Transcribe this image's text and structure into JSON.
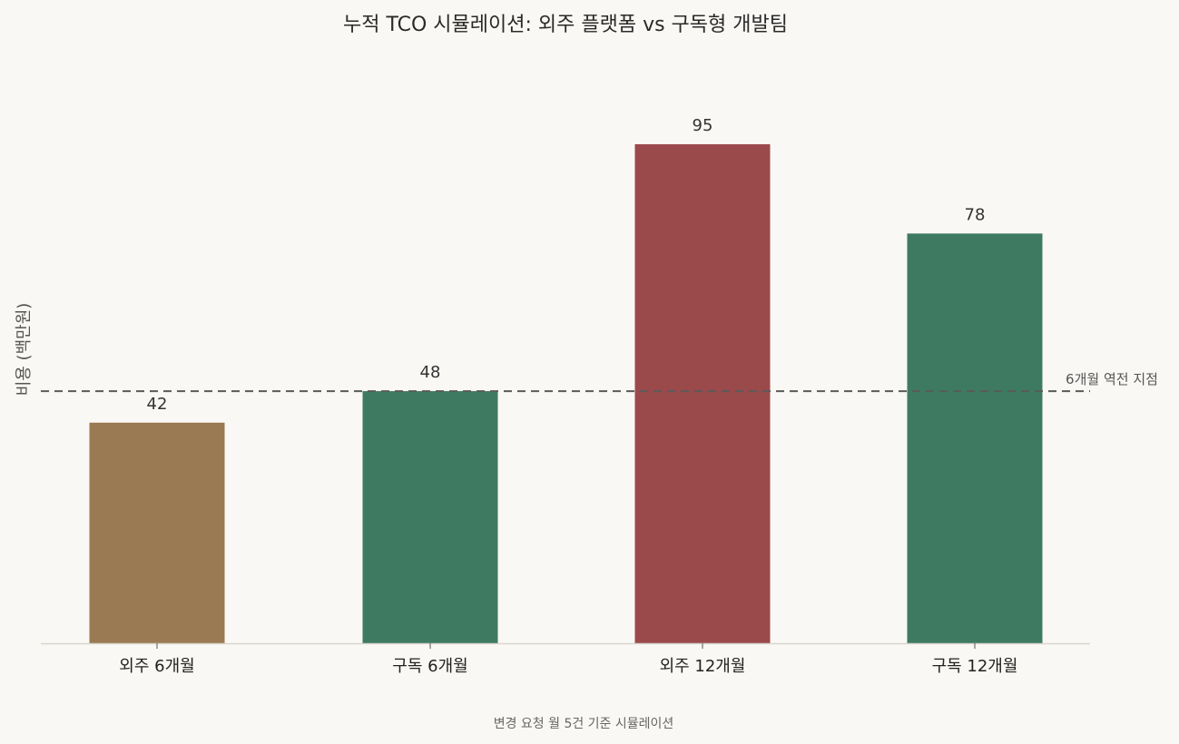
{
  "chart_data": {
    "type": "bar",
    "title": "누적 TCO 시뮬레이션: 외주 플랫폼 vs 구독형 개발팀",
    "ylabel": "비용 (백만원)",
    "xlabel": "",
    "caption": "변경 요청 월 5건 기준 시뮬레이션",
    "categories": [
      "외주 6개월",
      "구독 6개월",
      "외주 12개월",
      "구독 12개월"
    ],
    "values": [
      42,
      48,
      95,
      78
    ],
    "data_labels": [
      "42",
      "48",
      "95",
      "78"
    ],
    "colors": [
      "#9a7a52",
      "#3e7a62",
      "#9b4a4c",
      "#3e7a62"
    ],
    "ylim": [
      0,
      100
    ],
    "grid": false,
    "reference_line": {
      "value": 48,
      "label": "6개월 역전 지점",
      "color": "#5a5a5a",
      "style": "dashed"
    }
  }
}
